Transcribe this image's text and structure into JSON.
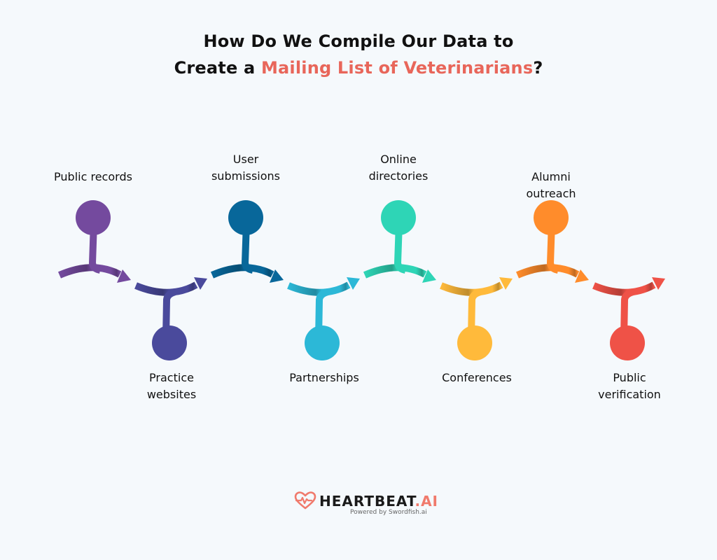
{
  "title": {
    "line1": "How Do We Compile Our Data to",
    "line2_prefix": "Create a ",
    "line2_accent": "Mailing List of Veterinarians",
    "line2_suffix": "?"
  },
  "accent_color": "#e8665a",
  "steps": [
    {
      "label_line1": "Public records",
      "label_line2": "",
      "position": "top",
      "color": "#744a9e"
    },
    {
      "label_line1": "Practice",
      "label_line2": "websites",
      "position": "bottom",
      "color": "#4a4a9c"
    },
    {
      "label_line1": "User",
      "label_line2": "submissions",
      "position": "top",
      "color": "#08679a"
    },
    {
      "label_line1": "Partnerships",
      "label_line2": "",
      "position": "bottom",
      "color": "#2cb8d7"
    },
    {
      "label_line1": "Online",
      "label_line2": "directories",
      "position": "top",
      "color": "#2ed5b6"
    },
    {
      "label_line1": "Conferences",
      "label_line2": "",
      "position": "bottom",
      "color": "#ffba3b"
    },
    {
      "label_line1": "Alumni",
      "label_line2": "outreach",
      "position": "top",
      "color": "#ff8c2b"
    },
    {
      "label_line1": "Public",
      "label_line2": "verification",
      "position": "bottom",
      "color": "#ef5247"
    }
  ],
  "brand": {
    "name": "HEARTBEAT",
    "suffix": ".AI",
    "powered_by": "Powered by Swordfish.ai",
    "icon": "heart-pulse-icon"
  }
}
